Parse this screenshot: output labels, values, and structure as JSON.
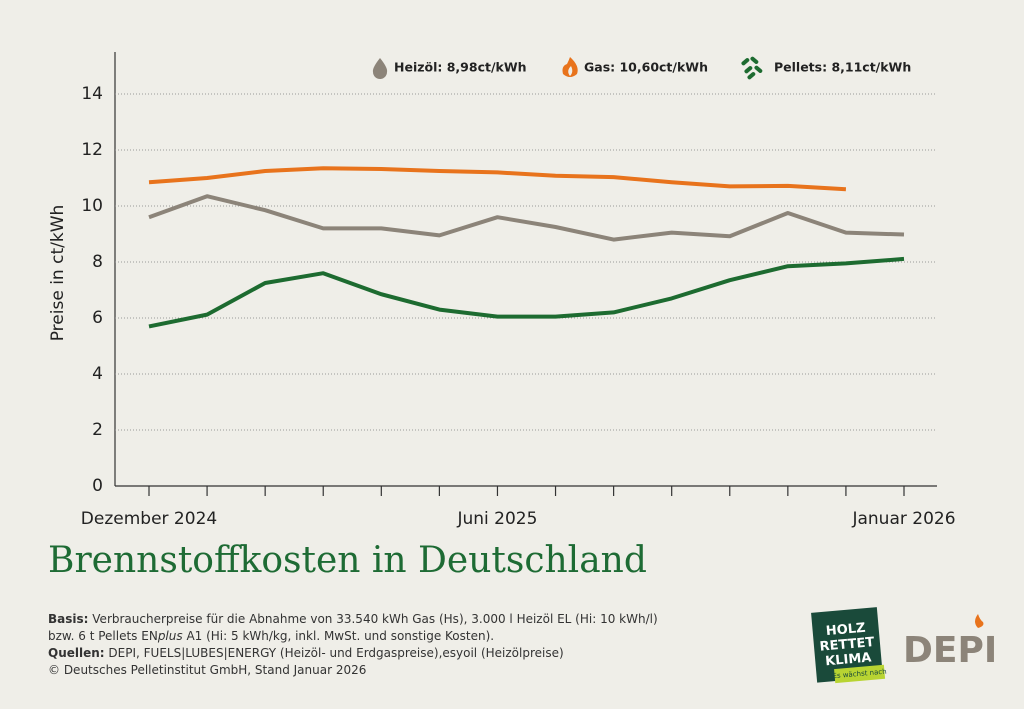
{
  "chart_data": {
    "type": "line",
    "title": "Brennstoffkosten in Deutschland",
    "ylabel": "Preise in ct/kWh",
    "categories": [
      "Dezember 2024",
      null,
      null,
      null,
      null,
      null,
      "Juni 2025",
      null,
      null,
      null,
      null,
      null,
      null,
      "Januar 2026"
    ],
    "ylim": [
      0,
      15.5
    ],
    "yticks": [
      0,
      2,
      4,
      6,
      8,
      10,
      12,
      14
    ],
    "grid": true,
    "series": [
      {
        "name": "Heizöl: 8,98ct/kWh",
        "color": "#8c8479",
        "values": [
          9.6,
          10.35,
          9.85,
          9.2,
          9.2,
          8.95,
          9.6,
          9.25,
          8.8,
          9.05,
          8.92,
          9.75,
          9.05,
          8.98
        ]
      },
      {
        "name": "Gas: 10,60ct/kWh",
        "color": "#e8731c",
        "values": [
          10.85,
          11.0,
          11.25,
          11.35,
          11.32,
          11.25,
          11.2,
          11.08,
          11.03,
          10.85,
          10.7,
          10.72,
          10.6,
          null
        ]
      },
      {
        "name": "Pellets: 8,11ct/kWh",
        "color": "#1d6b30",
        "values": [
          5.7,
          6.12,
          7.25,
          7.6,
          6.85,
          6.3,
          6.05,
          6.05,
          6.2,
          6.7,
          7.35,
          7.85,
          7.95,
          8.11
        ]
      }
    ]
  },
  "footer": {
    "basis_label": "Basis:",
    "basis_text": "Verbraucherpreise für die Abnahme von 33.540 kWh Gas (Hs), 3.000 l Heizöl EL (Hi: 10 kWh/l)",
    "basis_text_2a": "bzw. 6 t Pellets EN",
    "basis_text_2b": "plus",
    "basis_text_2c": " A1 (Hi: 5 kWh/kg, inkl. MwSt. und sonstige Kosten).",
    "sources_label": "Quellen:",
    "sources_text": "DEPI, FUELS|LUBES|ENERGY (Heizöl- und Erdgaspreise),esyoil (Heizölpreise)",
    "copyright": "© Deutsches Pelletinstitut GmbH, Stand Januar 2026"
  },
  "logos": {
    "badge_1": "HOLZ",
    "badge_2": "RETTET",
    "badge_3": "KLIMA",
    "badge_tag": "Es wächst nach",
    "depi": "DEPI"
  }
}
